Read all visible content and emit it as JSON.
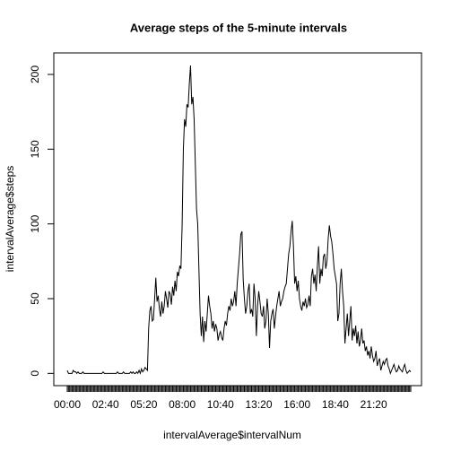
{
  "chart_data": {
    "type": "line",
    "title": "Average steps of the 5-minute intervals",
    "x_label": "intervalAverage$intervalNum",
    "y_label": "intervalAverage$steps",
    "color": "#000000",
    "categories": [
      "00:00",
      null,
      null,
      null,
      null,
      null,
      null,
      null,
      null,
      null,
      null,
      null,
      null,
      null,
      null,
      null,
      null,
      null,
      null,
      null,
      null,
      null,
      null,
      null,
      null,
      null,
      null,
      null,
      null,
      null,
      null,
      null,
      "02:40",
      null,
      null,
      null,
      null,
      null,
      null,
      null,
      null,
      null,
      null,
      null,
      null,
      null,
      null,
      null,
      null,
      null,
      null,
      null,
      null,
      null,
      null,
      null,
      null,
      null,
      null,
      null,
      null,
      null,
      null,
      null,
      "05:20",
      null,
      null,
      null,
      null,
      null,
      null,
      null,
      null,
      null,
      null,
      null,
      null,
      null,
      null,
      null,
      null,
      null,
      null,
      null,
      null,
      null,
      null,
      null,
      null,
      null,
      null,
      null,
      null,
      null,
      null,
      null,
      "08:00",
      null,
      null,
      null,
      null,
      null,
      null,
      null,
      null,
      null,
      null,
      null,
      null,
      null,
      null,
      null,
      null,
      null,
      null,
      null,
      null,
      null,
      null,
      null,
      null,
      null,
      null,
      null,
      null,
      null,
      null,
      null,
      "10:40",
      null,
      null,
      null,
      null,
      null,
      null,
      null,
      null,
      null,
      null,
      null,
      null,
      null,
      null,
      null,
      null,
      null,
      null,
      null,
      null,
      null,
      null,
      null,
      null,
      null,
      null,
      null,
      null,
      null,
      null,
      null,
      "13:20",
      null,
      null,
      null,
      null,
      null,
      null,
      null,
      null,
      null,
      null,
      null,
      null,
      null,
      null,
      null,
      null,
      null,
      null,
      null,
      null,
      null,
      null,
      null,
      null,
      null,
      null,
      null,
      null,
      null,
      null,
      null,
      "16:00",
      null,
      null,
      null,
      null,
      null,
      null,
      null,
      null,
      null,
      null,
      null,
      null,
      null,
      null,
      null,
      null,
      null,
      null,
      null,
      null,
      null,
      null,
      null,
      null,
      null,
      null,
      null,
      null,
      null,
      null,
      null,
      "18:40",
      null,
      null,
      null,
      null,
      null,
      null,
      null,
      null,
      null,
      null,
      null,
      null,
      null,
      null,
      null,
      null,
      null,
      null,
      null,
      null,
      null,
      null,
      null,
      null,
      null,
      null,
      null,
      null,
      null,
      null,
      null,
      "21:20",
      null,
      null,
      null,
      null,
      null,
      null,
      null,
      null,
      null,
      null,
      null,
      null,
      null,
      null,
      null,
      null,
      null,
      null,
      null,
      null,
      null,
      null,
      null,
      null,
      null,
      null,
      null,
      null,
      null,
      null,
      null
    ],
    "values": [
      2,
      0,
      0,
      0,
      0,
      2,
      1,
      1,
      0,
      1,
      0,
      0,
      0,
      1,
      0,
      0,
      0,
      0,
      0,
      0,
      0,
      0,
      0,
      0,
      0,
      0,
      0,
      0,
      0,
      0,
      1,
      0,
      0,
      0,
      0,
      0,
      0,
      0,
      0,
      0,
      0,
      0,
      1,
      0,
      0,
      0,
      0,
      1,
      0,
      0,
      0,
      0,
      0,
      1,
      0,
      1,
      0,
      0,
      1,
      0,
      2,
      0,
      3,
      1,
      2,
      4,
      3,
      2,
      30,
      42,
      45,
      35,
      36,
      50,
      64,
      48,
      52,
      43,
      38,
      48,
      40,
      45,
      55,
      50,
      44,
      55,
      53,
      46,
      58,
      52,
      62,
      55,
      68,
      65,
      72,
      70,
      100,
      150,
      170,
      165,
      180,
      178,
      194,
      206,
      180,
      185,
      170,
      140,
      110,
      100,
      70,
      40,
      25,
      38,
      21,
      35,
      28,
      40,
      52,
      45,
      40,
      30,
      35,
      28,
      33,
      30,
      22,
      26,
      28,
      24,
      22,
      30,
      35,
      32,
      40,
      45,
      42,
      50,
      45,
      48,
      55,
      45,
      60,
      70,
      80,
      93,
      95,
      63,
      50,
      40,
      45,
      55,
      60,
      40,
      43,
      38,
      60,
      50,
      25,
      45,
      55,
      48,
      40,
      38,
      45,
      30,
      35,
      50,
      40,
      17,
      35,
      40,
      43,
      30,
      38,
      45,
      50,
      55,
      45,
      48,
      50,
      55,
      58,
      60,
      70,
      80,
      85,
      95,
      102,
      85,
      60,
      65,
      55,
      62,
      50,
      45,
      42,
      48,
      45,
      50,
      44,
      46,
      52,
      45,
      65,
      70,
      60,
      66,
      55,
      72,
      85,
      60,
      70,
      65,
      78,
      80,
      70,
      75,
      90,
      99,
      92,
      88,
      80,
      70,
      65,
      60,
      35,
      40,
      60,
      70,
      55,
      45,
      20,
      30,
      40,
      25,
      35,
      45,
      22,
      30,
      25,
      32,
      20,
      28,
      18,
      22,
      30,
      20,
      22,
      15,
      18,
      12,
      15,
      10,
      18,
      12,
      8,
      10,
      15,
      5,
      8,
      10,
      2,
      5,
      8,
      6,
      9,
      10,
      5,
      3,
      0,
      2,
      4,
      6,
      3,
      1,
      2,
      5,
      3,
      2,
      1,
      4,
      6,
      2,
      0,
      1,
      2,
      1
    ],
    "ylim": [
      -8.2,
      214.4
    ],
    "yticks": [
      0,
      50,
      100,
      150,
      200
    ],
    "grid": false
  }
}
